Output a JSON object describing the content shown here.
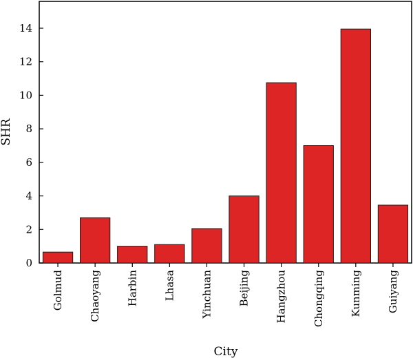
{
  "chart_data": {
    "type": "bar",
    "title": "",
    "xlabel": "City",
    "ylabel": "SHR",
    "categories": [
      "Golmud",
      "Chaoyang",
      "Harbin",
      "Lhasa",
      "Yinchuan",
      "Beijing",
      "Hangzhou",
      "Chongqing",
      "Kunming",
      "Guiyang"
    ],
    "values": [
      0.65,
      2.7,
      1.0,
      1.1,
      2.05,
      4.0,
      10.75,
      7.0,
      13.95,
      3.45
    ],
    "ylim": [
      0,
      15.6
    ],
    "yticks": [
      "0",
      "2",
      "4",
      "6",
      "8",
      "10",
      "12",
      "14"
    ],
    "grid": false,
    "bar_color": "#dd2525",
    "bar_edge_color": "#1a1a1a"
  }
}
